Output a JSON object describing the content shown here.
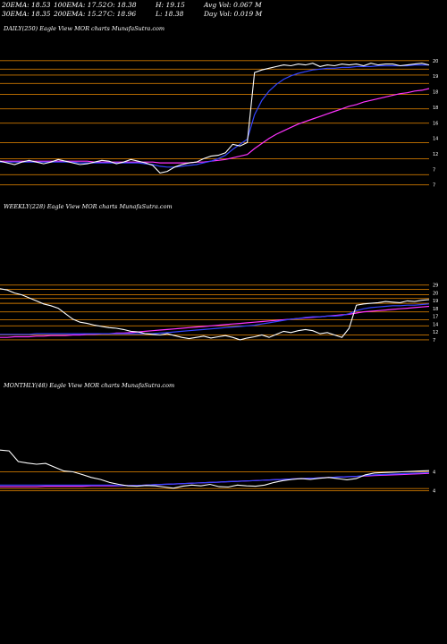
{
  "header": {
    "ema20": "20EMA: 18.53",
    "ema100": "100EMA: 17.52",
    "open": "O: 18.38",
    "high": "H: 19.15",
    "avgvol": "Avg Vol: 0.067 M",
    "ema30": "30EMA: 18.35",
    "ema200": "200EMA: 15.27",
    "close": "C: 18.96",
    "low": "L: 18.38",
    "dayvol": "Day Vol: 0.019 M"
  },
  "colors": {
    "price": "#ffffff",
    "fast": "#3344ff",
    "slow": "#ff33ff",
    "level": "#cc7700"
  },
  "chart_data": [
    {
      "type": "line",
      "title": "DAILY(250) Eagle View MOR charts MunafaSutra.com",
      "ticks": [
        "20",
        "19",
        "18",
        "18",
        "16",
        "14",
        "12",
        "7",
        "7"
      ],
      "series": [
        {
          "color": "#ffffff",
          "values": [
            19.0,
            18.8,
            18.6,
            18.9,
            19.1,
            18.9,
            18.7,
            18.9,
            19.2,
            19.0,
            18.8,
            18.6,
            18.7,
            18.9,
            19.1,
            19.0,
            18.7,
            18.9,
            19.2,
            19.0,
            18.8,
            18.5,
            17.6,
            17.8,
            18.3,
            18.6,
            18.8,
            18.9,
            19.3,
            19.6,
            19.7,
            20.0,
            21.0,
            20.8,
            21.2,
            29.5,
            29.8,
            30.0,
            30.2,
            30.4,
            30.3,
            30.5,
            30.4,
            30.6,
            30.2,
            30.4,
            30.3,
            30.5,
            30.4,
            30.5,
            30.3,
            30.6,
            30.4,
            30.5,
            30.5,
            30.3,
            30.4,
            30.5,
            30.6,
            30.4
          ]
        },
        {
          "color": "#3344ff",
          "values": [
            18.9,
            18.9,
            18.9,
            18.9,
            18.9,
            18.9,
            18.9,
            18.9,
            18.9,
            18.9,
            18.9,
            18.8,
            18.8,
            18.8,
            18.8,
            18.8,
            18.8,
            18.8,
            18.8,
            18.8,
            18.7,
            18.6,
            18.4,
            18.3,
            18.3,
            18.4,
            18.5,
            18.6,
            18.8,
            19.0,
            19.3,
            19.7,
            20.4,
            21.0,
            21.6,
            24.5,
            26.2,
            27.3,
            28.1,
            28.7,
            29.1,
            29.4,
            29.6,
            29.8,
            29.9,
            30.0,
            30.0,
            30.1,
            30.1,
            30.2,
            30.2,
            30.2,
            30.3,
            30.3,
            30.3,
            30.3,
            30.3,
            30.4,
            30.4,
            30.4
          ]
        },
        {
          "color": "#ff33ff",
          "values": [
            19.0,
            19.0,
            19.0,
            19.0,
            19.0,
            19.0,
            19.0,
            19.0,
            19.0,
            19.0,
            19.0,
            19.0,
            19.0,
            18.9,
            18.9,
            18.9,
            18.9,
            18.9,
            18.9,
            18.9,
            18.9,
            18.9,
            18.8,
            18.8,
            18.8,
            18.8,
            18.8,
            18.9,
            18.9,
            19.0,
            19.1,
            19.2,
            19.4,
            19.6,
            19.8,
            20.5,
            21.1,
            21.7,
            22.2,
            22.6,
            23.0,
            23.4,
            23.7,
            24.0,
            24.3,
            24.6,
            24.9,
            25.2,
            25.5,
            25.7,
            26.0,
            26.2,
            26.4,
            26.6,
            26.8,
            27.0,
            27.1,
            27.3,
            27.4,
            27.6
          ]
        }
      ],
      "levels": [
        30.9,
        29.9,
        29.2,
        28.2,
        26.9,
        25.2,
        23.5,
        21.2,
        19.3,
        17.4,
        16.2
      ],
      "ylim": [
        15.0,
        33.0
      ]
    },
    {
      "type": "line",
      "title": "WEEKLY(228) Eagle View MOR charts MunafaSutra.com",
      "ticks": [
        "29",
        "20",
        "19",
        "18",
        "17",
        "14",
        "12",
        "7"
      ],
      "series": [
        {
          "color": "#ffffff",
          "values": [
            29.0,
            28.8,
            28.3,
            28.0,
            27.5,
            27.0,
            26.5,
            26.2,
            25.8,
            24.9,
            24.0,
            23.5,
            23.3,
            23.0,
            22.8,
            22.6,
            22.5,
            22.3,
            22.0,
            21.9,
            21.6,
            21.5,
            21.4,
            21.6,
            21.3,
            21.0,
            20.8,
            21.0,
            21.2,
            20.9,
            21.1,
            21.3,
            21.0,
            20.6,
            20.9,
            21.1,
            21.4,
            21.0,
            21.5,
            22.0,
            21.8,
            22.1,
            22.3,
            22.1,
            21.6,
            21.8,
            21.4,
            21.0,
            22.5,
            26.3,
            26.5,
            26.6,
            26.7,
            26.9,
            26.8,
            26.7,
            27.0,
            26.9,
            27.1,
            27.2
          ]
        },
        {
          "color": "#3344ff",
          "values": [
            21.5,
            21.5,
            21.5,
            21.5,
            21.5,
            21.6,
            21.6,
            21.6,
            21.6,
            21.6,
            21.6,
            21.6,
            21.6,
            21.6,
            21.6,
            21.6,
            21.6,
            21.6,
            21.6,
            21.6,
            21.6,
            21.6,
            21.7,
            21.8,
            21.9,
            22.0,
            22.1,
            22.2,
            22.3,
            22.4,
            22.5,
            22.6,
            22.7,
            22.8,
            22.9,
            23.0,
            23.2,
            23.4,
            23.6,
            23.8,
            24.0,
            24.1,
            24.3,
            24.4,
            24.4,
            24.5,
            24.5,
            24.6,
            24.9,
            25.4,
            25.7,
            25.9,
            26.0,
            26.1,
            26.2,
            26.2,
            26.3,
            26.3,
            26.4,
            26.5
          ]
        },
        {
          "color": "#ff33ff",
          "values": [
            21.0,
            21.0,
            21.1,
            21.1,
            21.1,
            21.2,
            21.2,
            21.3,
            21.3,
            21.3,
            21.4,
            21.4,
            21.5,
            21.5,
            21.6,
            21.6,
            21.7,
            21.7,
            21.8,
            21.9,
            22.0,
            22.1,
            22.2,
            22.3,
            22.4,
            22.5,
            22.6,
            22.7,
            22.8,
            22.9,
            23.0,
            23.1,
            23.2,
            23.3,
            23.4,
            23.5,
            23.6,
            23.7,
            23.8,
            23.9,
            24.0,
            24.1,
            24.2,
            24.3,
            24.4,
            24.5,
            24.6,
            24.7,
            24.8,
            25.0,
            25.2,
            25.3,
            25.4,
            25.5,
            25.6,
            25.7,
            25.8,
            25.9,
            26.0,
            26.1
          ]
        }
      ],
      "levels": [
        29.6,
        28.9,
        28.0,
        27.4,
        26.6,
        25.2,
        23.9,
        22.9,
        21.4,
        20.6
      ],
      "ylim": [
        15.0,
        40.0
      ]
    },
    {
      "type": "line",
      "title": "MONTHLY(48) Eagle View MOR charts MunafaSutra.com",
      "ticks": [
        "4",
        "4"
      ],
      "series": [
        {
          "color": "#ffffff",
          "values": [
            32.0,
            31.8,
            29.0,
            28.6,
            28.3,
            28.5,
            27.5,
            26.5,
            26.3,
            25.6,
            24.8,
            24.3,
            23.5,
            23.0,
            22.6,
            22.5,
            22.7,
            22.6,
            22.3,
            22.0,
            22.5,
            22.8,
            22.6,
            23.0,
            22.4,
            22.3,
            22.8,
            22.6,
            22.5,
            22.8,
            23.5,
            24.0,
            24.3,
            24.5,
            24.3,
            24.6,
            24.8,
            24.5,
            24.2,
            24.5,
            25.5,
            26.0,
            26.1,
            26.2,
            26.3,
            26.4,
            26.5,
            26.6
          ]
        },
        {
          "color": "#3344ff",
          "values": [
            22.8,
            22.8,
            22.8,
            22.8,
            22.8,
            22.8,
            22.8,
            22.8,
            22.8,
            22.8,
            22.8,
            22.8,
            22.8,
            22.7,
            22.7,
            22.7,
            22.8,
            22.9,
            23.0,
            23.1,
            23.2,
            23.3,
            23.4,
            23.5,
            23.6,
            23.7,
            23.8,
            23.9,
            24.0,
            24.1,
            24.2,
            24.3,
            24.4,
            24.5,
            24.6,
            24.7,
            24.8,
            24.9,
            25.0,
            25.1,
            25.3,
            25.5,
            25.6,
            25.7,
            25.8,
            25.9,
            26.0,
            26.1
          ]
        },
        {
          "color": "#ff33ff",
          "values": [
            22.4,
            22.4,
            22.4,
            22.4,
            22.4,
            22.5,
            22.5,
            22.5,
            22.5,
            22.5,
            22.6,
            22.6,
            22.6,
            22.6,
            22.7,
            22.7,
            22.8,
            22.9,
            23.0,
            23.1,
            23.2,
            23.3,
            23.4,
            23.5,
            23.6,
            23.7,
            23.8,
            23.9,
            24.0,
            24.1,
            24.2,
            24.3,
            24.4,
            24.5,
            24.6,
            24.7,
            24.8,
            24.9,
            25.0,
            25.1,
            25.2,
            25.3,
            25.4,
            25.5,
            25.6,
            25.7,
            25.8,
            25.9
          ]
        }
      ],
      "levels": [
        26.3,
        21.9,
        21.3
      ],
      "ylim": [
        5.0,
        45.0
      ]
    }
  ]
}
